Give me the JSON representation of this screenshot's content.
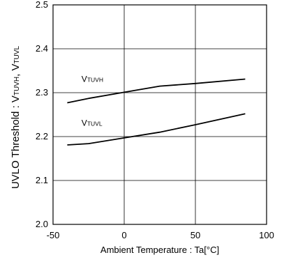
{
  "chart_data": {
    "type": "line",
    "xlabel": "Ambient Temperature : Ta[°C]",
    "ylabel": {
      "main": "UVLO Threshold  :  V",
      "sub1": "TUVH",
      "sep": ", V",
      "sub2": "TUVL"
    },
    "xlim": [
      -50,
      100
    ],
    "ylim": [
      2.0,
      2.5
    ],
    "x_ticks": [
      -50,
      0,
      50,
      100
    ],
    "x_tick_labels": [
      "-50",
      "0",
      "50",
      "100"
    ],
    "y_ticks": [
      2.0,
      2.1,
      2.2,
      2.3,
      2.4,
      2.5
    ],
    "y_tick_labels": [
      "2.0",
      "2.1",
      "2.2",
      "2.3",
      "2.4",
      "2.5"
    ],
    "grid": true,
    "legend": "none",
    "series": [
      {
        "name": "VTUVH",
        "label_main": "V",
        "label_sub": "TUVH",
        "label_at": [
          -30,
          2.325
        ],
        "x": [
          -40,
          -25,
          0,
          25,
          50,
          85
        ],
        "y": [
          2.277,
          2.287,
          2.301,
          2.315,
          2.321,
          2.331
        ],
        "color": "#000000"
      },
      {
        "name": "VTUVL",
        "label_main": "V",
        "label_sub": "TUVL",
        "label_at": [
          -30,
          2.225
        ],
        "x": [
          -40,
          -25,
          0,
          25,
          50,
          85
        ],
        "y": [
          2.181,
          2.184,
          2.197,
          2.21,
          2.227,
          2.252
        ],
        "color": "#000000"
      }
    ]
  }
}
